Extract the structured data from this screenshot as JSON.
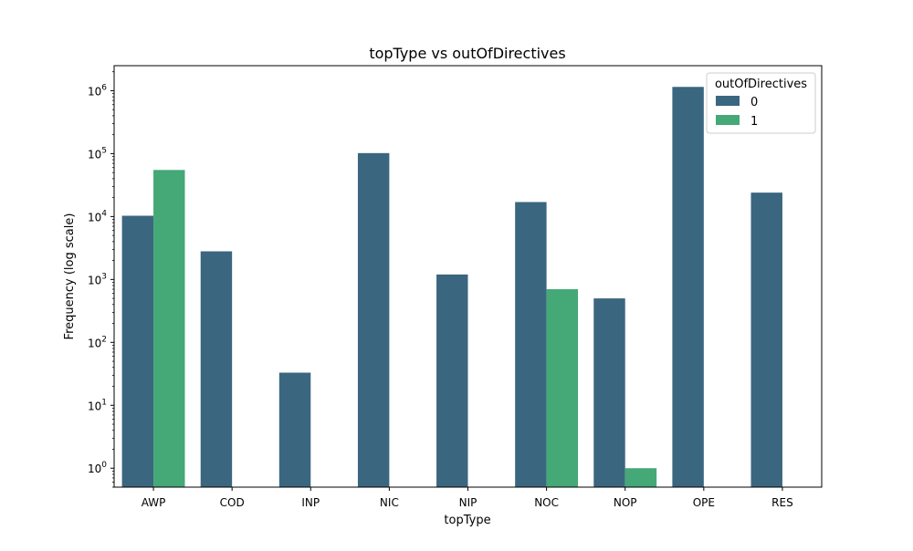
{
  "chart_data": {
    "type": "bar",
    "title": "topType vs outOfDirectives",
    "xlabel": "topType",
    "ylabel": "Frequency (log scale)",
    "yscale": "log",
    "ylim": [
      0.5,
      2500000
    ],
    "grid": false,
    "legend": {
      "title": "outOfDirectives",
      "placement": "top-right"
    },
    "categories": [
      "AWP",
      "COD",
      "INP",
      "NIC",
      "NIP",
      "NOC",
      "NOP",
      "OPE",
      "RES"
    ],
    "series": [
      {
        "name": "0",
        "color": "#3b6680",
        "values": [
          10300,
          2800,
          33,
          102000,
          1200,
          17000,
          500,
          1150000,
          24000
        ]
      },
      {
        "name": "1",
        "color": "#44a877",
        "values": [
          55000,
          null,
          null,
          null,
          null,
          700,
          1,
          null,
          null
        ]
      }
    ],
    "y_tick_labels": [
      {
        "base": "10",
        "exp": "0"
      },
      {
        "base": "10",
        "exp": "1"
      },
      {
        "base": "10",
        "exp": "2"
      },
      {
        "base": "10",
        "exp": "3"
      },
      {
        "base": "10",
        "exp": "4"
      },
      {
        "base": "10",
        "exp": "5"
      },
      {
        "base": "10",
        "exp": "6"
      }
    ]
  }
}
